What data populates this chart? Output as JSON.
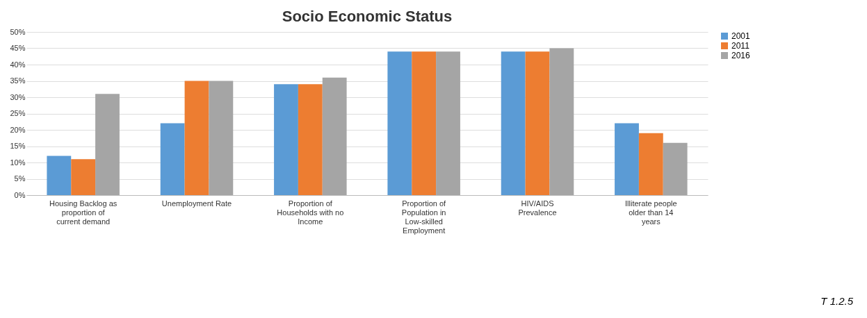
{
  "chart_data": {
    "type": "bar",
    "title": "Socio Economic Status",
    "categories": [
      "Housing Backlog as proportion of current demand",
      "Unemployment Rate",
      "Proportion of Households with no Income",
      "Proportion of Population in Low-skilled Employment",
      "HIV/AIDS Prevalence",
      "Illiterate people older than 14 years"
    ],
    "series": [
      {
        "name": "2001",
        "color": "#5b9bd5",
        "values": [
          12,
          22,
          34,
          44,
          44,
          22
        ]
      },
      {
        "name": "2011",
        "color": "#ed7d31",
        "values": [
          11,
          35,
          34,
          44,
          44,
          19
        ]
      },
      {
        "name": "2016",
        "color": "#a5a5a5",
        "values": [
          31,
          35,
          36,
          44,
          45,
          16
        ]
      }
    ],
    "ylim": [
      0,
      50
    ],
    "yticks": [
      {
        "value": 0,
        "label": "0%"
      },
      {
        "value": 5,
        "label": "5%"
      },
      {
        "value": 10,
        "label": "10%"
      },
      {
        "value": 15,
        "label": "15%"
      },
      {
        "value": 20,
        "label": "20%"
      },
      {
        "value": 25,
        "label": "25%"
      },
      {
        "value": 30,
        "label": "30%"
      },
      {
        "value": 35,
        "label": "35%"
      },
      {
        "value": 40,
        "label": "40%"
      },
      {
        "value": 45,
        "label": "45%"
      },
      {
        "value": 50,
        "label": "50%"
      }
    ],
    "grid": "y",
    "legend": "right",
    "annotations": [
      "T 1.2.5"
    ]
  }
}
